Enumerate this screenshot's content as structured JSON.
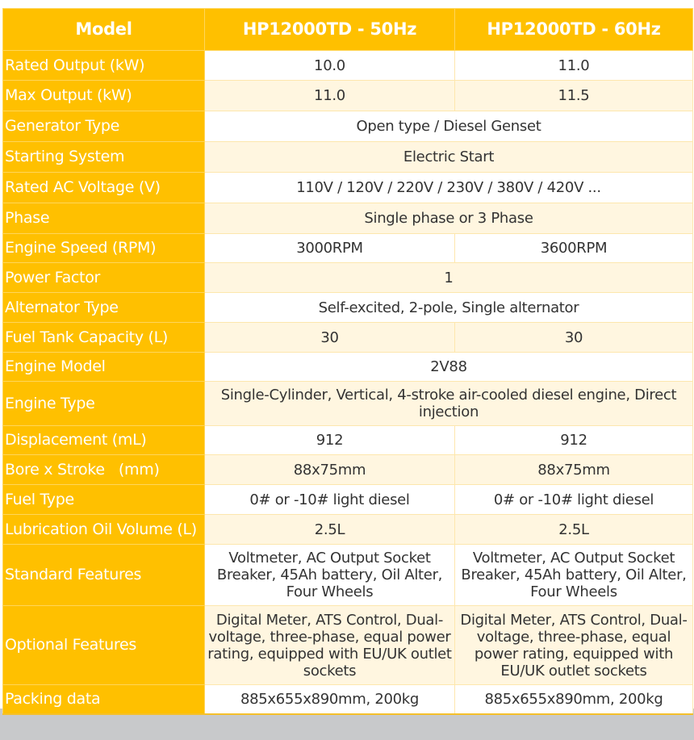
{
  "header": {
    "label": "Model",
    "col1": "HP12000TD - 50Hz",
    "col2": "HP12000TD - 60Hz"
  },
  "rows": [
    {
      "label": "Rated Output (kW)",
      "v1": "10.0",
      "v2": "11.0"
    },
    {
      "label": "Max Output (kW)",
      "v1": "11.0",
      "v2": "11.5"
    },
    {
      "label": "Generator Type",
      "v": "Open type / Diesel Genset"
    },
    {
      "label": "Starting System",
      "v": "Electric Start"
    },
    {
      "label": "Rated AC Voltage (V)",
      "v": "110V / 120V / 220V / 230V / 380V / 420V ..."
    },
    {
      "label": "Phase",
      "v": "Single phase or 3 Phase"
    },
    {
      "label": "Engine Speed (RPM)",
      "v1": "3000RPM",
      "v2": "3600RPM"
    },
    {
      "label": "Power Factor",
      "v": "1"
    },
    {
      "label": "Alternator Type",
      "v": "Self-excited, 2-pole, Single alternator"
    },
    {
      "label": "Fuel Tank Capacity (L)",
      "v1": "30",
      "v2": "30"
    },
    {
      "label": "Engine Model",
      "v": "2V88"
    },
    {
      "label": "Engine Type",
      "v": "Single-Cylinder, Vertical, 4-stroke air-cooled diesel engine, Direct injection"
    },
    {
      "label": "Displacement (mL)",
      "v1": "912",
      "v2": "912"
    },
    {
      "label": "Bore x Stroke   (mm)",
      "v1": "88x75mm",
      "v2": "88x75mm"
    },
    {
      "label": "Fuel Type",
      "v1": "0# or -10# light diesel",
      "v2": "0# or -10# light diesel"
    },
    {
      "label": "Lubrication Oil Volume (L)",
      "v1": "2.5L",
      "v2": "2.5L"
    },
    {
      "label": "Standard Features",
      "v1": "Voltmeter, AC Output Socket Breaker, 45Ah battery, Oil Alter, Four Wheels",
      "v2": "Voltmeter, AC Output Socket Breaker, 45Ah battery, Oil Alter, Four Wheels"
    },
    {
      "label": "Optional Features",
      "v1": "Digital Meter, ATS Control, Dual-voltage, three-phase, equal power rating, equipped with EU/UK outlet sockets",
      "v2": "Digital Meter, ATS Control, Dual-voltage, three-phase, equal power rating, equipped with EU/UK outlet sockets"
    },
    {
      "label": "Packing data",
      "v1": "885x655x890mm, 200kg",
      "v2": "885x655x890mm, 200kg"
    }
  ],
  "colors": {
    "header": "#ffc000",
    "alt_row": "#fff6e0",
    "footer_bg": "#c8c9cb"
  }
}
